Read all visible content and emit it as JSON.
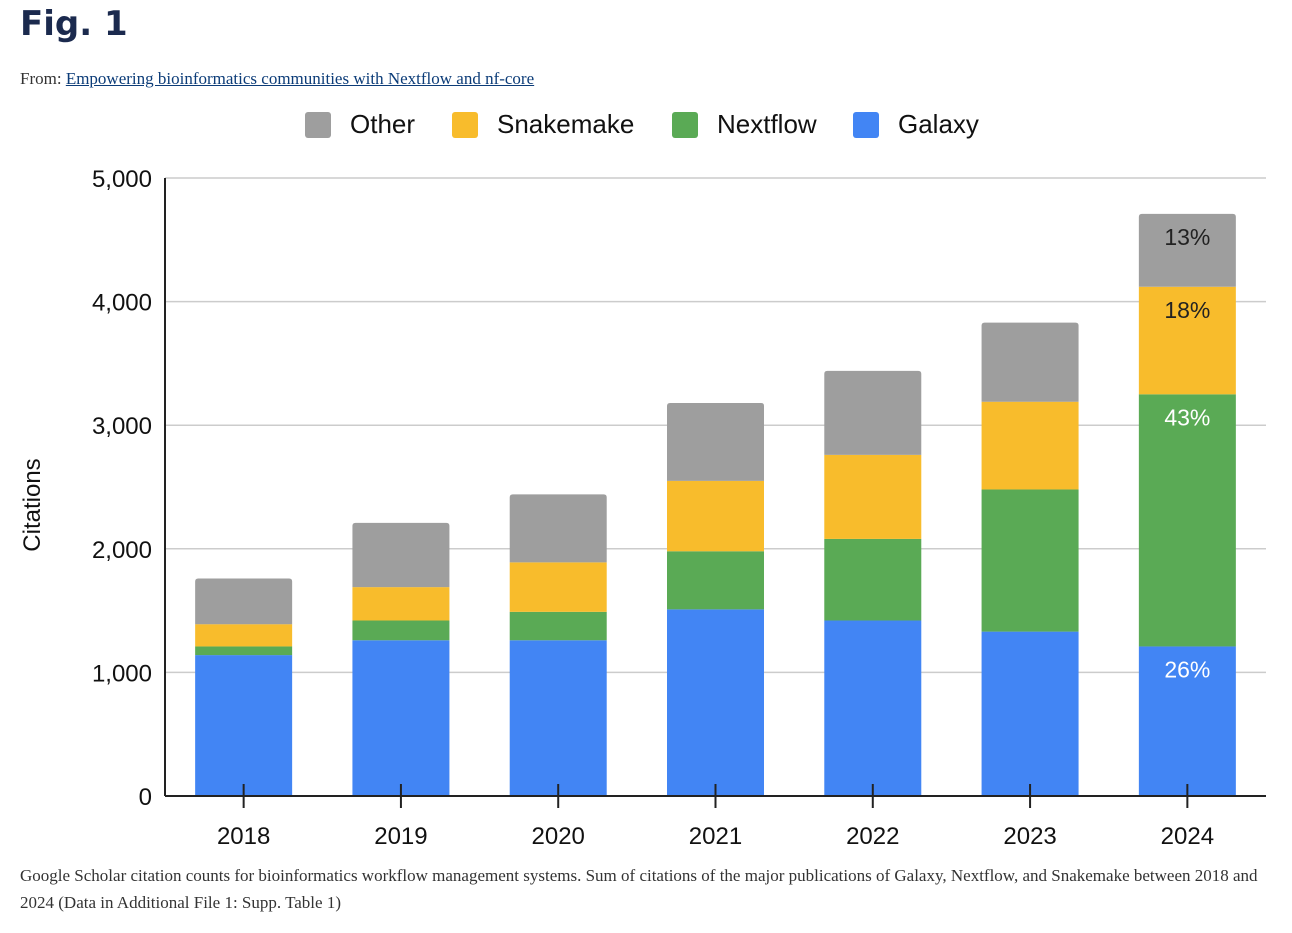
{
  "page": {
    "fig_title": "Fig. 1",
    "from_label": "From:",
    "from_link": "Empowering bioinformatics communities with Nextflow and nf-core",
    "caption": "Google Scholar citation counts for bioinformatics workflow management systems. Sum of citations of the major publications of Galaxy, Nextflow, and Snakemake between 2018 and 2024 (Data in Additional File 1: Supp. Table 1)"
  },
  "chart_data": {
    "type": "bar",
    "stacked": true,
    "title": "",
    "xlabel": "",
    "ylabel": "Citations",
    "ylim": [
      0,
      5000
    ],
    "yticks": [
      0,
      1000,
      2000,
      3000,
      4000,
      5000
    ],
    "ytick_labels": [
      "0",
      "1,000",
      "2,000",
      "3,000",
      "4,000",
      "5,000"
    ],
    "grid": true,
    "legend_position": "top",
    "legend_order": [
      "Other",
      "Snakemake",
      "Nextflow",
      "Galaxy"
    ],
    "categories": [
      "2018",
      "2019",
      "2020",
      "2021",
      "2022",
      "2023",
      "2024"
    ],
    "series": [
      {
        "name": "Galaxy",
        "color": "#4285f4",
        "values": [
          1140,
          1260,
          1260,
          1510,
          1420,
          1330,
          1210
        ]
      },
      {
        "name": "Nextflow",
        "color": "#5aaa55",
        "values": [
          70,
          160,
          230,
          470,
          660,
          1150,
          2040
        ]
      },
      {
        "name": "Snakemake",
        "color": "#f8bc2c",
        "values": [
          180,
          270,
          400,
          570,
          680,
          710,
          870
        ]
      },
      {
        "name": "Other",
        "color": "#9e9e9e",
        "values": [
          370,
          520,
          550,
          630,
          680,
          640,
          590
        ]
      }
    ],
    "annotations": [
      {
        "category": "2024",
        "series": "Other",
        "text": "13%",
        "color": "#222222"
      },
      {
        "category": "2024",
        "series": "Snakemake",
        "text": "18%",
        "color": "#222222"
      },
      {
        "category": "2024",
        "series": "Nextflow",
        "text": "43%",
        "color": "#ffffff"
      },
      {
        "category": "2024",
        "series": "Galaxy",
        "text": "26%",
        "color": "#ffffff"
      }
    ]
  }
}
